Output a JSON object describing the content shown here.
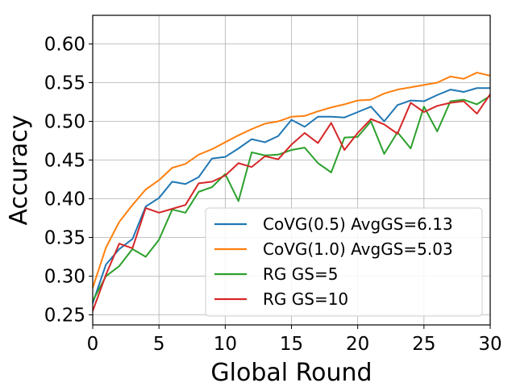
{
  "chart_data": {
    "type": "line",
    "xlabel": "Global Round",
    "ylabel": "Accuracy",
    "xlim": [
      0,
      30
    ],
    "ylim": [
      0.237,
      0.637
    ],
    "xticks": [
      0,
      5,
      10,
      15,
      20,
      25,
      30
    ],
    "yticks": [
      0.25,
      0.3,
      0.35,
      0.4,
      0.45,
      0.5,
      0.55,
      0.6
    ],
    "grid": true,
    "legend_position": "lower-right",
    "x": [
      0,
      1,
      2,
      3,
      4,
      5,
      6,
      7,
      8,
      9,
      10,
      11,
      12,
      13,
      14,
      15,
      16,
      17,
      18,
      19,
      20,
      21,
      22,
      23,
      24,
      25,
      26,
      27,
      28,
      29,
      30
    ],
    "series": [
      {
        "name": "CoVG(0.5) AvgGS=6.13",
        "color": "#1f77b4",
        "values": [
          0.265,
          0.315,
          0.335,
          0.348,
          0.39,
          0.401,
          0.422,
          0.419,
          0.428,
          0.452,
          0.454,
          0.465,
          0.477,
          0.473,
          0.481,
          0.502,
          0.493,
          0.506,
          0.506,
          0.505,
          0.512,
          0.519,
          0.5,
          0.521,
          0.527,
          0.526,
          0.534,
          0.541,
          0.538,
          0.543,
          0.543
        ]
      },
      {
        "name": "CoVG(1.0) AvgGS=5.03",
        "color": "#ff7f0e",
        "values": [
          0.285,
          0.337,
          0.37,
          0.392,
          0.412,
          0.424,
          0.44,
          0.445,
          0.457,
          0.464,
          0.473,
          0.482,
          0.49,
          0.497,
          0.5,
          0.506,
          0.507,
          0.513,
          0.518,
          0.522,
          0.527,
          0.528,
          0.536,
          0.541,
          0.544,
          0.547,
          0.55,
          0.558,
          0.555,
          0.563,
          0.559
        ]
      },
      {
        "name": "RG GS=5",
        "color": "#2ca02c",
        "values": [
          0.268,
          0.3,
          0.313,
          0.335,
          0.325,
          0.347,
          0.386,
          0.382,
          0.409,
          0.415,
          0.432,
          0.397,
          0.46,
          0.456,
          0.457,
          0.463,
          0.466,
          0.446,
          0.434,
          0.479,
          0.48,
          0.5,
          0.458,
          0.486,
          0.465,
          0.519,
          0.487,
          0.526,
          0.528,
          0.522,
          0.533
        ]
      },
      {
        "name": "RG GS=10",
        "color": "#d62728",
        "values": [
          0.255,
          0.302,
          0.342,
          0.336,
          0.388,
          0.382,
          0.387,
          0.392,
          0.42,
          0.422,
          0.43,
          0.446,
          0.441,
          0.455,
          0.451,
          0.47,
          0.485,
          0.472,
          0.498,
          0.463,
          0.485,
          0.503,
          0.496,
          0.484,
          0.524,
          0.512,
          0.52,
          0.524,
          0.526,
          0.51,
          0.535
        ]
      }
    ]
  }
}
